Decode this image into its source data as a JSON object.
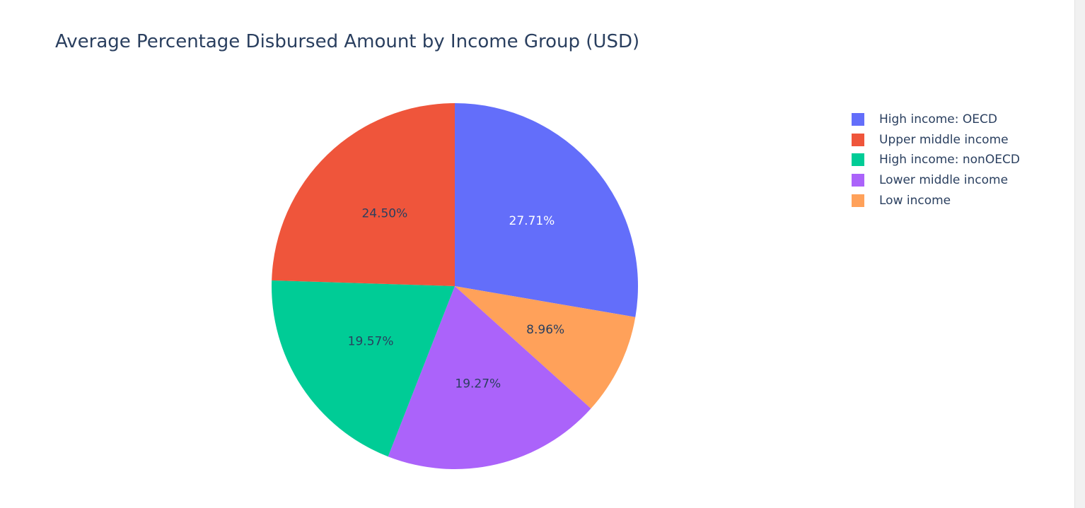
{
  "chart_data": {
    "type": "pie",
    "title": "Average Percentage Disbursed Amount by Income Group (USD)",
    "slices": [
      {
        "label": "High income: OECD",
        "value": 27.71,
        "text": "27.71%",
        "color": "#636efa",
        "text_color": "#ffffff"
      },
      {
        "label": "Low income",
        "value": 8.96,
        "text": "8.96%",
        "color": "#ffa15a",
        "text_color": "#2a3f5f"
      },
      {
        "label": "Lower middle income",
        "value": 19.27,
        "text": "19.27%",
        "color": "#ab63fa",
        "text_color": "#2a3f5f"
      },
      {
        "label": "High income: nonOECD",
        "value": 19.57,
        "text": "19.57%",
        "color": "#00cc96",
        "text_color": "#2a3f5f"
      },
      {
        "label": "Upper middle income",
        "value": 24.5,
        "text": "24.50%",
        "color": "#ef553b",
        "text_color": "#2a3f5f"
      }
    ],
    "direction": "clockwise",
    "start": "top",
    "legend": {
      "placement": "top-right",
      "order": [
        "High income: OECD",
        "Upper middle income",
        "High income: nonOECD",
        "Lower middle income",
        "Low income"
      ]
    }
  }
}
